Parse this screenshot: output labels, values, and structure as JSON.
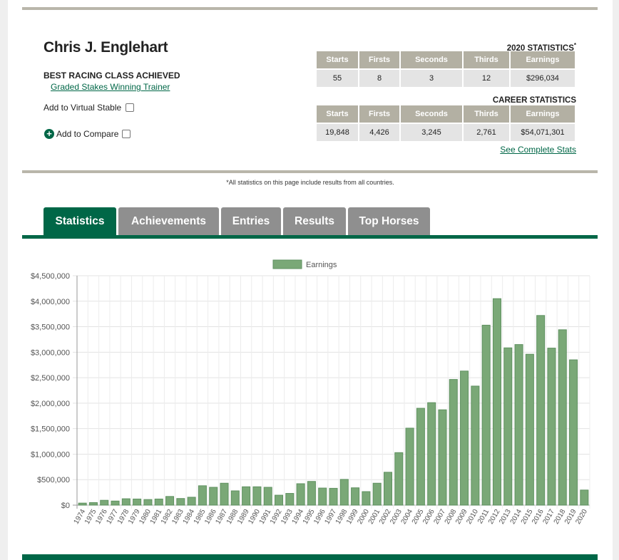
{
  "trainer": {
    "name": "Chris J. Englehart",
    "best_class_label": "BEST RACING CLASS ACHIEVED",
    "best_class_value": "Graded Stakes Winning Trainer",
    "virtual_stable_label": "Add to Virtual Stable",
    "compare_label": "Add to Compare"
  },
  "year_stats": {
    "title": "2020 STATISTICS",
    "title_mark": "*",
    "headers": [
      "Starts",
      "Firsts",
      "Seconds",
      "Thirds",
      "Earnings"
    ],
    "values": [
      "55",
      "8",
      "3",
      "12",
      "$296,034"
    ]
  },
  "career_stats": {
    "title": "CAREER STATISTICS",
    "headers": [
      "Starts",
      "Firsts",
      "Seconds",
      "Thirds",
      "Earnings"
    ],
    "values": [
      "19,848",
      "4,426",
      "3,245",
      "2,761",
      "$54,071,301"
    ]
  },
  "complete_stats_link": "See Complete Stats",
  "disclaimer": "*All statistics on this page include results from all countries.",
  "tabs": [
    {
      "label": "Statistics",
      "active": true
    },
    {
      "label": "Achievements",
      "active": false
    },
    {
      "label": "Entries",
      "active": false
    },
    {
      "label": "Results",
      "active": false
    },
    {
      "label": "Top Horses",
      "active": false
    }
  ],
  "colors": {
    "brand_green": "#006747",
    "bar_fill": "#7aa877",
    "bar_stroke": "#5f9160",
    "table_header": "#b3b0a3",
    "tab_inactive": "#8f8f8f"
  },
  "chart_data": {
    "type": "bar",
    "legend": [
      "Earnings"
    ],
    "legend_position": "top",
    "grid": true,
    "ylim": [
      0,
      4500000
    ],
    "y_ticks": [
      "$0",
      "$500,000",
      "$1,000,000",
      "$1,500,000",
      "$2,000,000",
      "$2,500,000",
      "$3,000,000",
      "$3,500,000",
      "$4,000,000",
      "$4,500,000"
    ],
    "categories": [
      "1974",
      "1975",
      "1976",
      "1977",
      "1978",
      "1979",
      "1980",
      "1981",
      "1982",
      "1983",
      "1984",
      "1985",
      "1986",
      "1987",
      "1988",
      "1989",
      "1990",
      "1991",
      "1992",
      "1993",
      "1994",
      "1995",
      "1996",
      "1997",
      "1998",
      "1999",
      "2000",
      "2001",
      "2002",
      "2003",
      "2004",
      "2005",
      "2006",
      "2007",
      "2008",
      "2009",
      "2010",
      "2011",
      "2012",
      "2013",
      "2014",
      "2015",
      "2016",
      "2017",
      "2018",
      "2019",
      "2020"
    ],
    "series": [
      {
        "name": "Earnings",
        "values": [
          40000,
          50000,
          95000,
          80000,
          125000,
          120000,
          110000,
          120000,
          170000,
          130000,
          155000,
          380000,
          350000,
          430000,
          280000,
          360000,
          360000,
          350000,
          195000,
          230000,
          420000,
          465000,
          335000,
          330000,
          505000,
          340000,
          265000,
          430000,
          645000,
          1030000,
          1510000,
          1900000,
          2010000,
          1870000,
          2465000,
          2630000,
          2335000,
          3530000,
          4050000,
          3085000,
          3150000,
          2960000,
          3720000,
          3080000,
          3440000,
          2850000,
          296034
        ]
      }
    ]
  }
}
